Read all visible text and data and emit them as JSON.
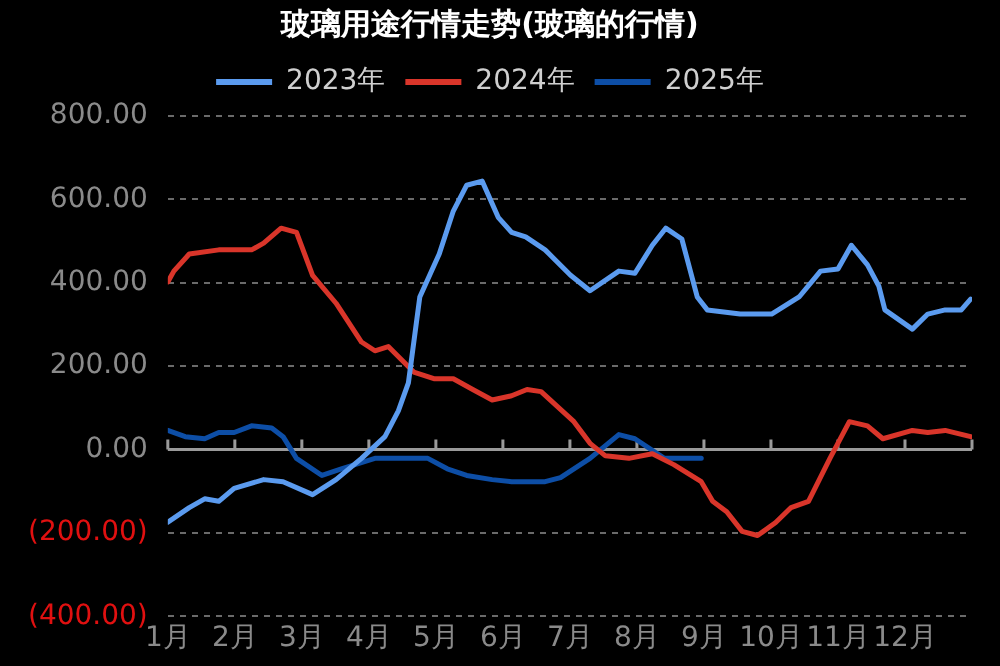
{
  "chart_data": {
    "type": "line",
    "title": "玻璃用途行情走势(玻璃的行情)",
    "xlim": [
      1,
      13
    ],
    "xticks": [
      {
        "value": 1,
        "label": "1月"
      },
      {
        "value": 2,
        "label": "2月"
      },
      {
        "value": 3,
        "label": "3月"
      },
      {
        "value": 4,
        "label": "4月"
      },
      {
        "value": 5,
        "label": "5月"
      },
      {
        "value": 6,
        "label": "6月"
      },
      {
        "value": 7,
        "label": "7月"
      },
      {
        "value": 8,
        "label": "8月"
      },
      {
        "value": 9,
        "label": "9月"
      },
      {
        "value": 10,
        "label": "10月"
      },
      {
        "value": 11,
        "label": "11月"
      },
      {
        "value": 12,
        "label": "12月"
      },
      {
        "value": 13,
        "label": null
      }
    ],
    "ylim": [
      -400,
      800
    ],
    "yticks": [
      {
        "value": -400,
        "label": "(400.00)"
      },
      {
        "value": -200,
        "label": "(200.00)"
      },
      {
        "value": 0,
        "label": "0.00"
      },
      {
        "value": 200,
        "label": "200.00"
      },
      {
        "value": 400,
        "label": "400.00"
      },
      {
        "value": 600,
        "label": "600.00"
      },
      {
        "value": 800,
        "label": "800.00"
      }
    ],
    "grid": "y",
    "legend": "top",
    "marker": "none",
    "line_style": "solid",
    "series": [
      {
        "name": "2023年",
        "color": "#5b9bef",
        "x": [
          1.0,
          1.32,
          1.55,
          1.76,
          1.99,
          2.43,
          2.72,
          3.16,
          3.51,
          3.89,
          4.24,
          4.44,
          4.59,
          4.76,
          5.05,
          5.26,
          5.46,
          5.69,
          5.93,
          6.13,
          6.34,
          6.63,
          7.01,
          7.3,
          7.73,
          7.97,
          8.23,
          8.43,
          8.67,
          8.9,
          9.05,
          9.54,
          10.01,
          10.42,
          10.74,
          11.0,
          11.2,
          11.44,
          11.61,
          11.7,
          12.11,
          12.34,
          12.6,
          12.84,
          12.98
        ],
        "values": [
          -174,
          -139,
          -118,
          -124,
          -93,
          -72,
          -77,
          -108,
          -72,
          -21,
          31,
          93,
          160,
          366,
          469,
          572,
          634,
          644,
          557,
          521,
          510,
          479,
          418,
          381,
          428,
          423,
          490,
          531,
          505,
          366,
          335,
          325,
          325,
          366,
          428,
          433,
          490,
          443,
          392,
          335,
          289,
          325,
          335,
          335,
          361
        ]
      },
      {
        "name": "2024年",
        "color": "#d9352a",
        "x": [
          1.0,
          1.09,
          1.32,
          1.76,
          2.25,
          2.43,
          2.69,
          2.92,
          3.16,
          3.51,
          3.89,
          4.09,
          4.29,
          4.67,
          4.97,
          5.26,
          5.55,
          5.84,
          6.13,
          6.36,
          6.57,
          7.06,
          7.3,
          7.53,
          7.88,
          8.23,
          8.55,
          8.96,
          9.13,
          9.34,
          9.57,
          9.8,
          10.07,
          10.3,
          10.56,
          10.88,
          11.17,
          11.44,
          11.67,
          12.11,
          12.34,
          12.6,
          12.98
        ],
        "values": [
          402,
          428,
          469,
          479,
          479,
          495,
          531,
          521,
          418,
          351,
          258,
          237,
          247,
          186,
          170,
          170,
          144,
          119,
          129,
          144,
          139,
          67,
          15,
          -15,
          -21,
          -10,
          -36,
          -77,
          -124,
          -149,
          -196,
          -206,
          -175,
          -139,
          -124,
          -21,
          67,
          57,
          26,
          46,
          41,
          46,
          31
        ]
      },
      {
        "name": "2025年",
        "color": "#0d4ea6",
        "x": [
          1.0,
          1.26,
          1.55,
          1.76,
          1.99,
          2.25,
          2.55,
          2.72,
          2.92,
          3.3,
          3.59,
          4.09,
          4.88,
          5.17,
          5.46,
          5.84,
          6.13,
          6.63,
          6.86,
          7.3,
          7.73,
          7.97,
          8.41,
          8.96
        ],
        "values": [
          46,
          31,
          26,
          41,
          41,
          57,
          52,
          31,
          -21,
          -62,
          -46,
          -21,
          -21,
          -46,
          -62,
          -72,
          -77,
          -77,
          -67,
          -21,
          36,
          26,
          -21,
          -21
        ]
      }
    ]
  }
}
